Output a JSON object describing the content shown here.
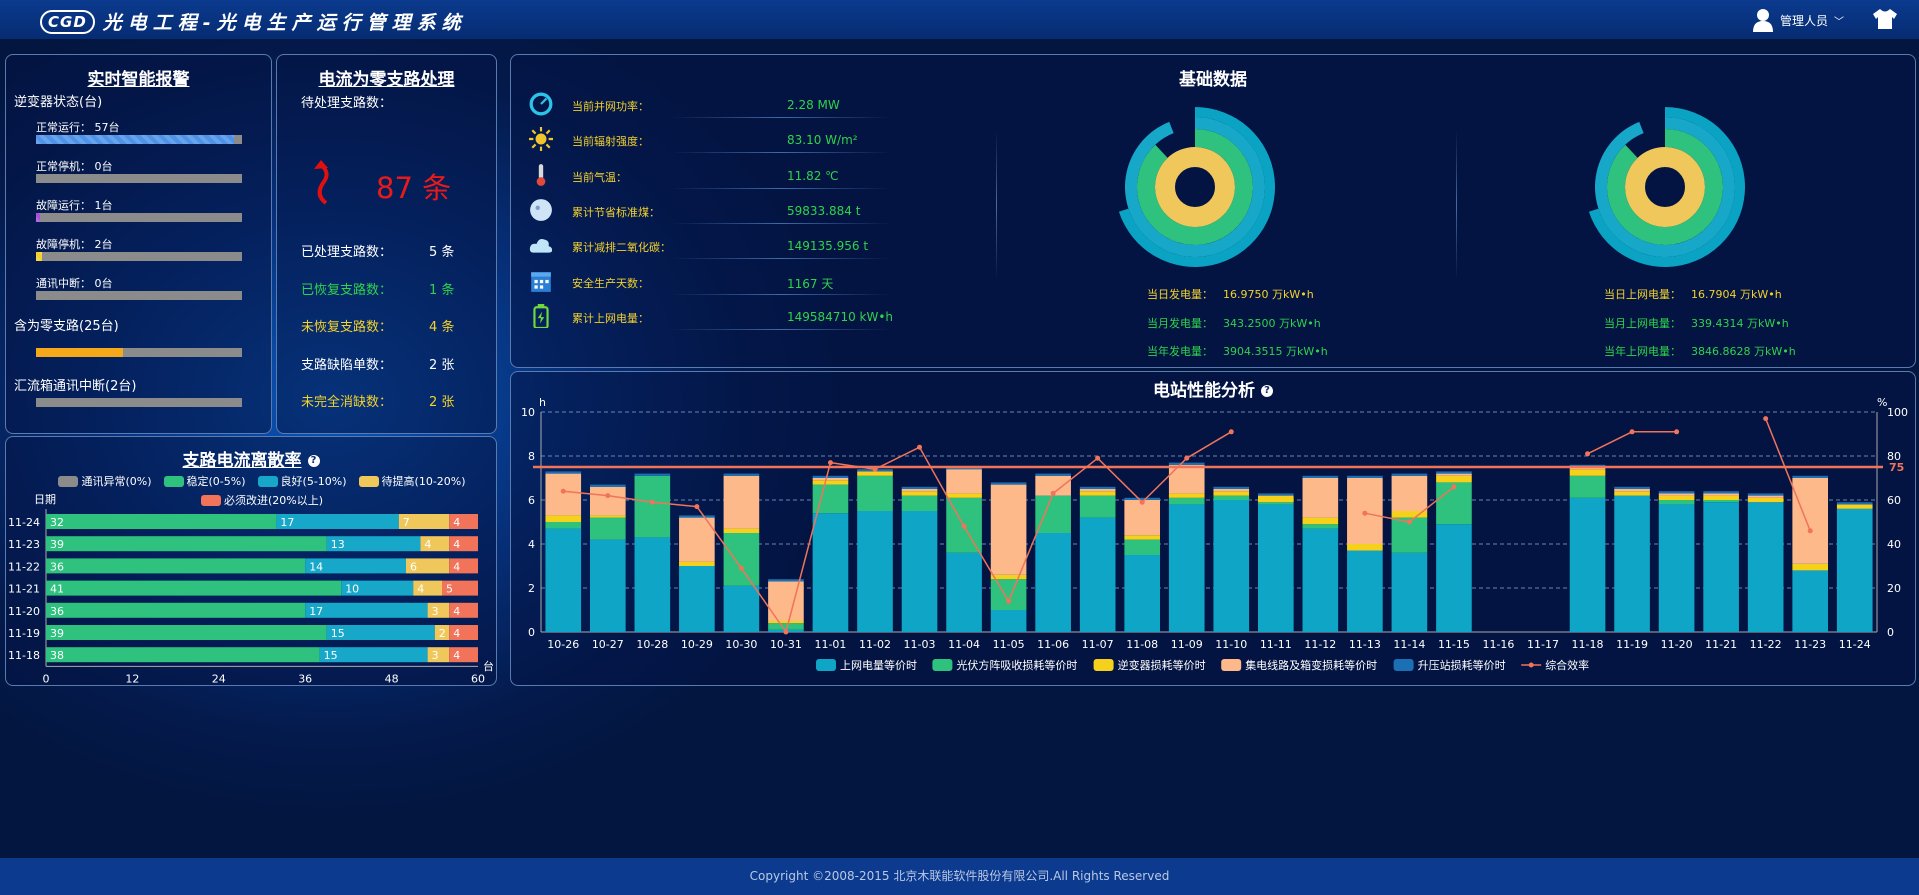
{
  "header": {
    "logo": "CGD",
    "title": "光电工程-光电生产运行管理系统",
    "user": "管理人员"
  },
  "alarm": {
    "title": "实时智能报警",
    "inverter_label": "逆变器状态(台)",
    "bars": [
      {
        "label": "正常运行： 57台",
        "fill": 0.96,
        "color": "#4f93e8"
      },
      {
        "label": "正常停机： 0台",
        "fill": 0,
        "color": "#4f93e8"
      },
      {
        "label": "故障运行： 1台",
        "fill": 0.02,
        "color": "#a64fd8"
      },
      {
        "label": "故障停机： 2台",
        "fill": 0.03,
        "color": "#f3d22c"
      },
      {
        "label": "通讯中断： 0台",
        "fill": 0,
        "color": "#4f93e8"
      }
    ],
    "zero_label": "含为零支路(25台)",
    "zero_fill": 0.42,
    "zero_color": "#f4a81a",
    "combiner_label": "汇流箱通讯中断(2台)",
    "combiner_fill": 0
  },
  "zero": {
    "title": "电流为零支路处理",
    "pending_label": "待处理支路数：",
    "pending_value": "87 条",
    "rows": [
      {
        "label": "已处理支路数：",
        "value": "5 条",
        "color": "#ffffff"
      },
      {
        "label": "已恢复支路数：",
        "value": "1 条",
        "color": "#2fd34b"
      },
      {
        "label": "未恢复支路数：",
        "value": "4 条",
        "color": "#f3d22c"
      },
      {
        "label": "支路缺陷单数：",
        "value": "2 张",
        "color": "#ffffff"
      },
      {
        "label": "未完全消缺数：",
        "value": "2 张",
        "color": "#f3d22c"
      }
    ]
  },
  "base": {
    "title": "基础数据",
    "rows": [
      {
        "icon": "gauge-icon",
        "label": "当前并网功率：",
        "value": "2.28 MW"
      },
      {
        "icon": "sun-icon",
        "label": "当前辐射强度：",
        "value": "83.10 W/m²"
      },
      {
        "icon": "thermometer-icon",
        "label": "当前气温：",
        "value": "11.82 ℃"
      },
      {
        "icon": "coal-icon",
        "label": "累计节省标准煤：",
        "value": "59833.884 t"
      },
      {
        "icon": "cloud-icon",
        "label": "累计减排二氧化碳：",
        "value": "149135.956 t"
      },
      {
        "icon": "calendar-icon",
        "label": "安全生产天数：",
        "value": "1167 天"
      },
      {
        "icon": "battery-icon",
        "label": "累计上网电量：",
        "value": "149584710 kW•h"
      }
    ],
    "gen": [
      {
        "label": "当日发电量：",
        "value": "16.9750 万kW•h",
        "color": "#f3d22c"
      },
      {
        "label": "当月发电量：",
        "value": "343.2500 万kW•h",
        "color": "#2fd34b"
      },
      {
        "label": "当年发电量：",
        "value": "3904.3515 万kW•h",
        "color": "#2fd34b"
      }
    ],
    "grid": [
      {
        "label": "当日上网电量：",
        "value": "16.7904 万kW•h",
        "color": "#f3d22c"
      },
      {
        "label": "当月上网电量：",
        "value": "339.4314 万kW•h",
        "color": "#2fd34b"
      },
      {
        "label": "当年上网电量：",
        "value": "3846.8628 万kW•h",
        "color": "#2fd34b"
      }
    ],
    "ring_colors": [
      "#f0c75a",
      "#2ec27e",
      "#17a7c8",
      "#0aa3c3"
    ],
    "gen_rings": [
      1.0,
      0.88,
      0.94,
      0.7
    ],
    "grid_rings": [
      1.0,
      0.88,
      0.94,
      0.7
    ]
  },
  "dispersion": {
    "title": "支路电流离散率",
    "legend": [
      {
        "name": "通讯异常(0%)",
        "color": "#8b8b8b"
      },
      {
        "name": "稳定(0-5%)",
        "color": "#2ec27e"
      },
      {
        "name": "良好(5-10%)",
        "color": "#17a7c8"
      },
      {
        "name": "待提高(10-20%)",
        "color": "#f0c75a"
      },
      {
        "name": "必须改进(20%以上)",
        "color": "#f0735a"
      }
    ],
    "ylabel": "日期",
    "xunit": "台",
    "xticks": [
      "0",
      "12",
      "24",
      "36",
      "48",
      "60"
    ]
  },
  "perf": {
    "title": "电站性能分析",
    "left_unit": "h",
    "right_unit": "%",
    "ref_label": "75",
    "legend": [
      "上网电量等价时",
      "光伏方阵吸收损耗等价时",
      "逆变器损耗等价时",
      "集电线路及箱变损耗等价时",
      "升压站损耗等价时",
      "综合效率"
    ]
  },
  "footer": "Copyright ©2008-2015 北京木联能软件股份有限公司.All Rights Reserved",
  "chart_data": [
    {
      "type": "bar",
      "title": "支路电流离散率",
      "xlabel": "台",
      "ylabel": "日期",
      "xlim": [
        0,
        60
      ],
      "categories": [
        "11-24",
        "11-23",
        "11-22",
        "11-21",
        "11-20",
        "11-19",
        "11-18"
      ],
      "series": [
        {
          "name": "稳定(0-5%)",
          "color": "#2ec27e",
          "values": [
            32,
            39,
            36,
            41,
            36,
            39,
            38
          ]
        },
        {
          "name": "良好(5-10%)",
          "color": "#17a7c8",
          "values": [
            17,
            13,
            14,
            10,
            17,
            15,
            15
          ]
        },
        {
          "name": "待提高(10-20%)",
          "color": "#f0c75a",
          "values": [
            7,
            4,
            6,
            4,
            3,
            2,
            3
          ]
        },
        {
          "name": "必须改进(20%以上)",
          "color": "#f0735a",
          "values": [
            4,
            4,
            4,
            5,
            4,
            4,
            4
          ]
        }
      ]
    },
    {
      "type": "bar",
      "title": "电站性能分析",
      "ylim": [
        0,
        10
      ],
      "y2lim": [
        0,
        100
      ],
      "ref_line": 75,
      "categories": [
        "10-26",
        "10-27",
        "10-28",
        "10-29",
        "10-30",
        "10-31",
        "11-01",
        "11-02",
        "11-03",
        "11-04",
        "11-05",
        "11-06",
        "11-07",
        "11-08",
        "11-09",
        "11-10",
        "11-11",
        "11-12",
        "11-13",
        "11-14",
        "11-15",
        "11-16",
        "11-17",
        "11-18",
        "11-19",
        "11-20",
        "11-21",
        "11-22",
        "11-23",
        "11-24"
      ],
      "series": [
        {
          "name": "上网电量等价时",
          "color": "#0ea5c6",
          "values": [
            4.7,
            4.2,
            4.3,
            3.0,
            2.1,
            0.1,
            5.4,
            5.5,
            5.5,
            3.6,
            1.0,
            4.5,
            5.2,
            3.5,
            5.8,
            6.0,
            5.8,
            4.7,
            3.7,
            3.6,
            4.9,
            0,
            0,
            6.1,
            6.2,
            5.8,
            5.9,
            5.9,
            2.8,
            5.6
          ]
        },
        {
          "name": "光伏方阵吸收损耗等价时",
          "color": "#2ec27e",
          "values": [
            0.3,
            1.0,
            2.8,
            0,
            2.4,
            0.3,
            1.3,
            1.6,
            0.7,
            2.5,
            1.4,
            1.7,
            1.0,
            0.7,
            0.3,
            0.2,
            0.1,
            0.2,
            0,
            1.6,
            1.9,
            0,
            0,
            1.0,
            0,
            0.2,
            0.1,
            0,
            0,
            0
          ]
        },
        {
          "name": "逆变器损耗等价时",
          "color": "#f5d11c",
          "values": [
            0.3,
            0.1,
            0,
            0.2,
            0.2,
            0.1,
            0.2,
            0.2,
            0.2,
            0.2,
            0.2,
            0,
            0.2,
            0.2,
            0.2,
            0.2,
            0.3,
            0.3,
            0.3,
            0.3,
            0.3,
            0,
            0,
            0.3,
            0.2,
            0.2,
            0.2,
            0.2,
            0.3,
            0.2
          ]
        },
        {
          "name": "集电线路及箱变损耗等价时",
          "color": "#fdb98a",
          "values": [
            1.9,
            1.3,
            0,
            2.0,
            2.4,
            1.8,
            0.1,
            0,
            0.1,
            1.1,
            4.1,
            0.9,
            0.1,
            1.6,
            1.3,
            0.1,
            0,
            1.8,
            3.0,
            1.6,
            0.1,
            0,
            0,
            0.1,
            0.1,
            0.1,
            0.1,
            0.1,
            3.9,
            0
          ]
        },
        {
          "name": "升压站损耗等价时",
          "color": "#1b6fb3",
          "values": [
            0.1,
            0.1,
            0.1,
            0.1,
            0.1,
            0.1,
            0.1,
            0.1,
            0.1,
            0.1,
            0.1,
            0.1,
            0.1,
            0.1,
            0.1,
            0.1,
            0.1,
            0.1,
            0.1,
            0.1,
            0.1,
            0,
            0,
            0.1,
            0.1,
            0.1,
            0.1,
            0.1,
            0.1,
            0.1
          ]
        },
        {
          "name": "综合效率",
          "color": "#f0735a",
          "type": "line",
          "values": [
            64,
            62,
            59,
            57,
            29,
            0,
            77,
            74,
            84,
            48,
            14,
            63,
            79,
            59,
            79,
            91,
            null,
            null,
            54,
            50,
            66,
            null,
            null,
            81,
            91,
            91,
            null,
            97,
            46,
            null
          ]
        }
      ]
    }
  ]
}
